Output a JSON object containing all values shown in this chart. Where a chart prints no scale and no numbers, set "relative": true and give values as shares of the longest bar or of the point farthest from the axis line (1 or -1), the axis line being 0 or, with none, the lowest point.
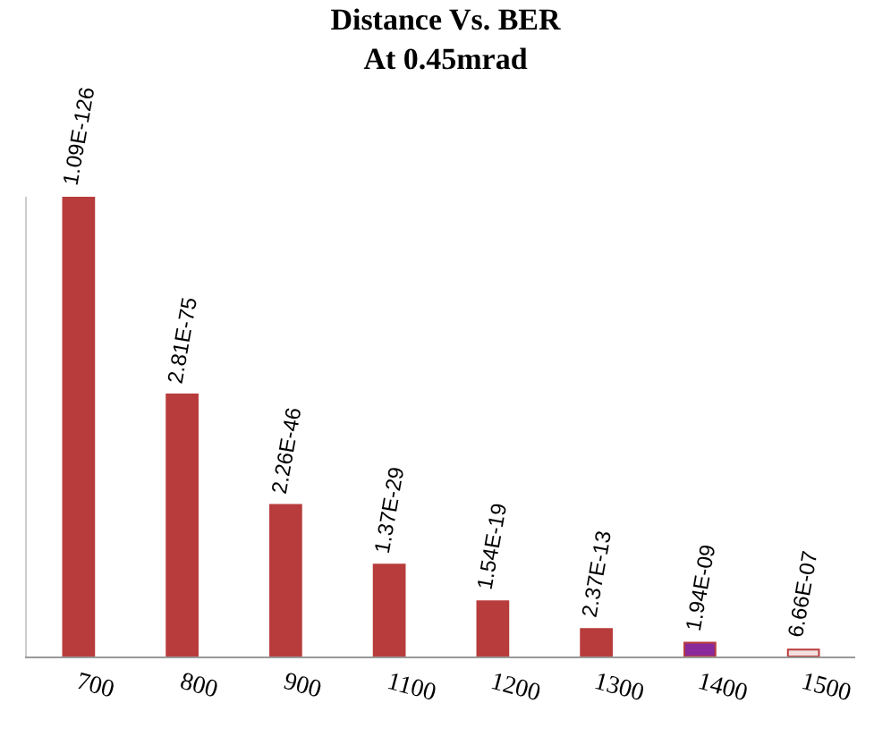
{
  "chart_data": {
    "type": "bar",
    "title": "Distance Vs. BER\nAt 0.45mrad",
    "relative": true,
    "categories": [
      "700",
      "800",
      "900",
      "1100",
      "1200",
      "1300",
      "1400",
      "1500"
    ],
    "values": [
      1,
      0.57,
      0.33,
      0.2,
      0.12,
      0.06,
      0.03,
      0.015
    ],
    "colors": [
      "#b83c3c",
      "#b83c3c",
      "#b83c3c",
      "#b83c3c",
      "#b83c3c",
      "#b83c3c",
      "#8a2a9a",
      "#f4e0e0"
    ],
    "annotations": [
      {
        "text": "1.09E-126",
        "x": "700",
        "y": 1
      },
      {
        "text": "2.81E-75",
        "x": "800",
        "y": 0.57
      },
      {
        "text": "2.26E-46",
        "x": "900",
        "y": 0.33
      },
      {
        "text": "1.37E-29",
        "x": "1100",
        "y": 0.2
      },
      {
        "text": "1.54E-19",
        "x": "1200",
        "y": 0.12
      },
      {
        "text": "2.37E-13",
        "x": "1300",
        "y": 0.06
      },
      {
        "text": "1.94E-09",
        "x": "1400",
        "y": 0.03
      },
      {
        "text": "6.66E-07",
        "x": "1500",
        "y": 0.015
      }
    ]
  }
}
